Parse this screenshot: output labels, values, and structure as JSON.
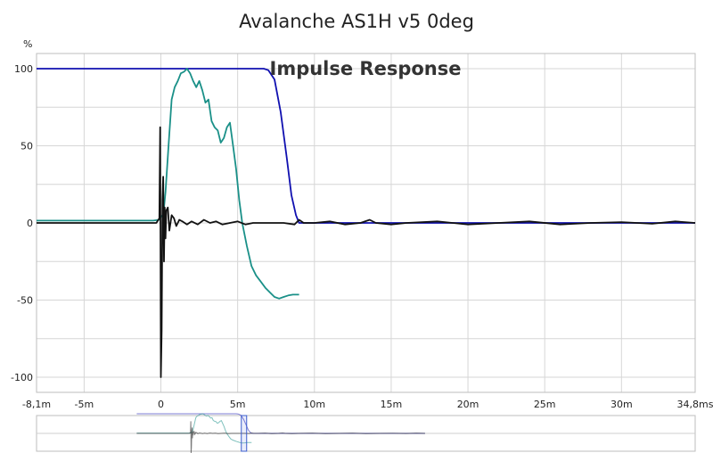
{
  "chart_data": {
    "type": "line",
    "title": "Avalanche AS1H v5 0deg",
    "annotation": "Impulse Response",
    "ylabel": "%",
    "xlim": [
      -8.1,
      34.8
    ],
    "ylim": [
      -105,
      105
    ],
    "x_ticks": [
      {
        "v": -8.1,
        "label": "-8,1m"
      },
      {
        "v": -5,
        "label": "-5m"
      },
      {
        "v": 0,
        "label": "0"
      },
      {
        "v": 5,
        "label": "5m"
      },
      {
        "v": 10,
        "label": "10m"
      },
      {
        "v": 15,
        "label": "15m"
      },
      {
        "v": 20,
        "label": "20m"
      },
      {
        "v": 25,
        "label": "25m"
      },
      {
        "v": 30,
        "label": "30m"
      },
      {
        "v": 34.8,
        "label": "34,8ms"
      }
    ],
    "y_ticks": [
      {
        "v": 100,
        "label": "100"
      },
      {
        "v": 50,
        "label": "50"
      },
      {
        "v": 0,
        "label": "0"
      },
      {
        "v": -50,
        "label": "-50"
      },
      {
        "v": -100,
        "label": "-100"
      }
    ],
    "grid": true,
    "series": [
      {
        "color": "#1010b0",
        "x": [
          -8.1,
          6.7,
          7.0,
          7.4,
          7.8,
          8.2,
          8.5,
          8.8,
          9.0,
          34.8
        ],
        "y": [
          100,
          100,
          99,
          93,
          72,
          42,
          18,
          5,
          0,
          0
        ]
      },
      {
        "color": "#1a9088",
        "x": [
          -8.1,
          -0.5,
          -0.1,
          0,
          0.1,
          0.2,
          0.3,
          0.5,
          0.7,
          0.9,
          1.1,
          1.3,
          1.5,
          1.7,
          1.9,
          2.1,
          2.3,
          2.5,
          2.7,
          2.9,
          3.1,
          3.3,
          3.5,
          3.7,
          3.9,
          4.1,
          4.3,
          4.5,
          4.7,
          4.9,
          5.1,
          5.3,
          5.6,
          5.9,
          6.2,
          6.5,
          6.8,
          7.1,
          7.4,
          7.7,
          8.0,
          8.3,
          8.6,
          9.0
        ],
        "y": [
          1.5,
          1.5,
          2,
          4,
          5,
          10,
          20,
          50,
          80,
          88,
          92,
          97,
          98,
          100,
          97,
          92,
          88,
          92,
          86,
          78,
          80,
          66,
          62,
          60,
          52,
          55,
          62,
          65,
          50,
          35,
          15,
          0,
          -15,
          -28,
          -34,
          -38,
          -42,
          -45,
          -48,
          -49,
          -48,
          -47,
          -46.5,
          -46.5
        ]
      },
      {
        "color": "#111111",
        "x": [
          -8.1,
          -0.3,
          -0.1,
          -0.05,
          0,
          0.05,
          0.1,
          0.15,
          0.2,
          0.25,
          0.3,
          0.35,
          0.45,
          0.55,
          0.7,
          0.85,
          1.0,
          1.2,
          1.4,
          1.7,
          2.0,
          2.4,
          2.8,
          3.2,
          3.6,
          4.0,
          4.5,
          5.0,
          5.5,
          6.0,
          7.0,
          8.0,
          8.7,
          9.0,
          9.3,
          10.0,
          11.0,
          12.0,
          13.0,
          13.6,
          14.0,
          15.0,
          16.0,
          18.0,
          20.0,
          22.0,
          24.0,
          26.0,
          28.0,
          30.0,
          32.0,
          33.5,
          34.8
        ],
        "y": [
          0,
          0,
          3,
          62,
          -100,
          -70,
          15,
          30,
          -25,
          10,
          -10,
          8,
          10,
          -5,
          5,
          3,
          -2,
          2,
          1,
          -1,
          1,
          -1,
          2,
          0,
          1,
          -1,
          0,
          1,
          -1,
          0,
          0,
          0,
          -1,
          2,
          0,
          0,
          1,
          -1,
          0,
          2,
          0,
          -1,
          0,
          1,
          -1,
          0,
          1,
          -1,
          0,
          0.5,
          -0.5,
          1,
          0
        ]
      }
    ],
    "overview": {
      "view_start": 7.6,
      "view_end": 8.1
    }
  }
}
